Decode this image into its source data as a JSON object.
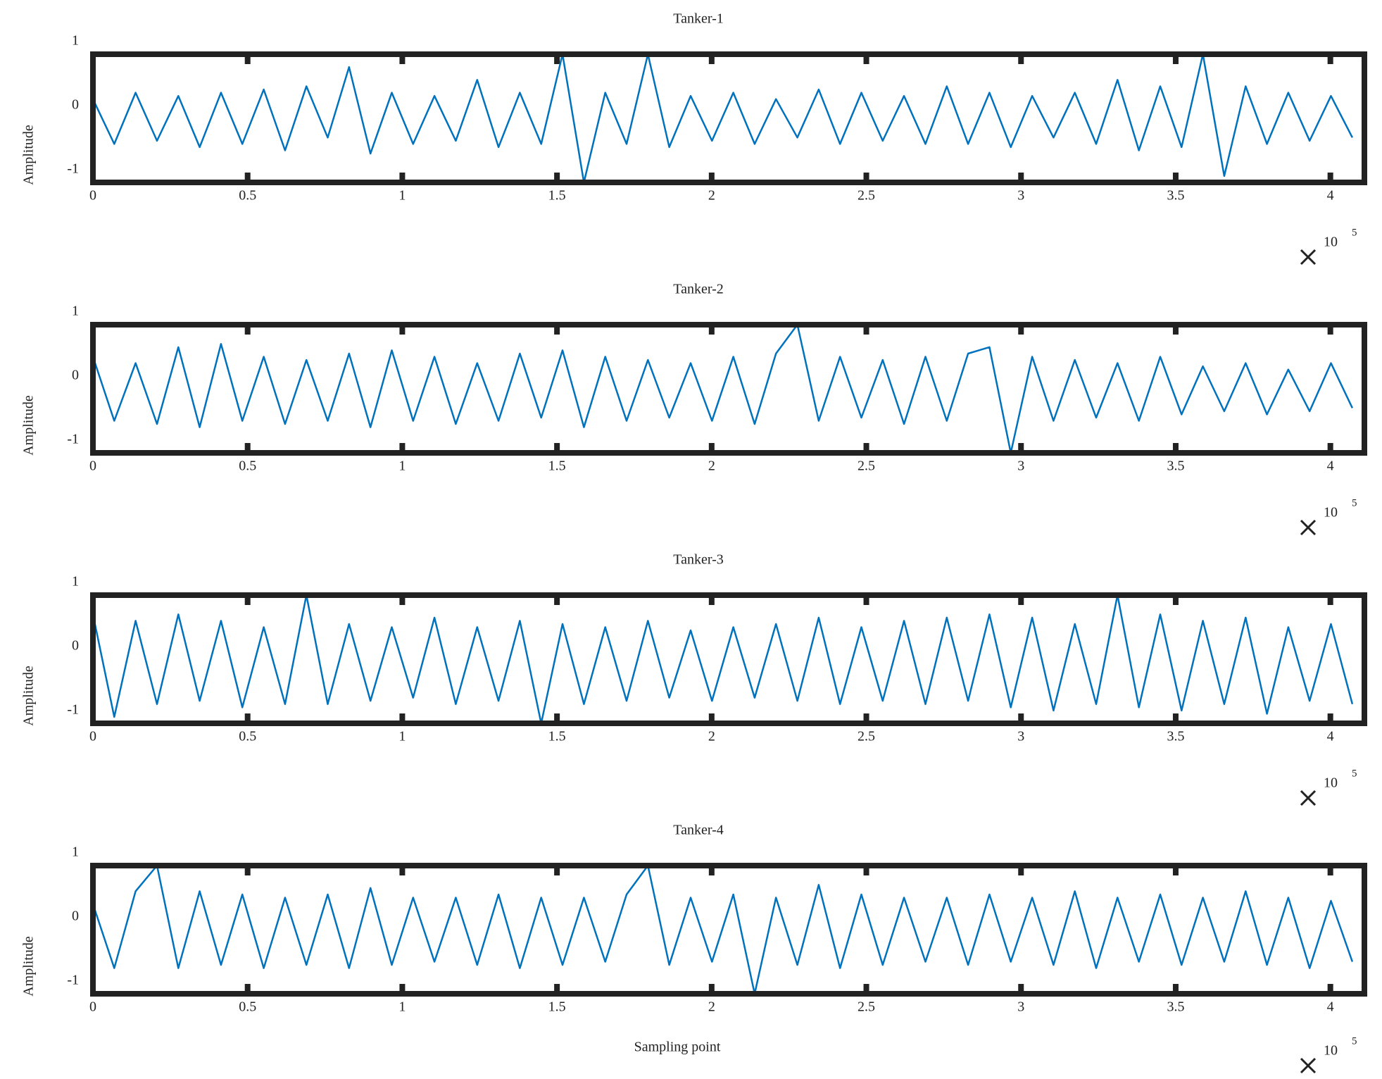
{
  "chart_data": [
    {
      "type": "line",
      "title": "Tanker-1",
      "ylabel": "Amplitude",
      "x": [
        0,
        6900,
        13800,
        20700,
        27600,
        34500,
        41400,
        48300,
        55200,
        62100,
        69000,
        75900,
        82800,
        89700,
        96600,
        103500,
        110400,
        117300,
        124200,
        131100,
        138000,
        144900,
        151800,
        158700,
        165600,
        172500,
        179400,
        186300,
        193200,
        200100,
        207000,
        213900,
        220800,
        227700,
        234600,
        241500,
        248400,
        255300,
        262200,
        269100,
        276000,
        282900,
        289800,
        296700,
        303600,
        310500,
        317400,
        324300,
        331200,
        338100,
        345000,
        351900,
        358800,
        365700,
        372600,
        379500,
        386400,
        393300,
        400200,
        407100
      ],
      "series": [
        {
          "color": "#0072bd",
          "values": [
            0.1,
            -0.6,
            0.2,
            -0.55,
            0.15,
            -0.65,
            0.2,
            -0.6,
            0.25,
            -0.7,
            0.3,
            -0.5,
            0.6,
            -0.75,
            0.2,
            -0.6,
            0.15,
            -0.55,
            0.4,
            -0.65,
            0.2,
            -0.6,
            0.8,
            -1.2,
            0.2,
            -0.6,
            0.8,
            -0.65,
            0.15,
            -0.55,
            0.2,
            -0.6,
            0.1,
            -0.5,
            0.25,
            -0.6,
            0.2,
            -0.55,
            0.15,
            -0.6,
            0.3,
            -0.6,
            0.2,
            -0.65,
            0.15,
            -0.5,
            0.2,
            -0.6,
            0.4,
            -0.7,
            0.3,
            -0.65,
            0.8,
            -1.1,
            0.3,
            -0.6,
            0.2,
            -0.55,
            0.15,
            -0.5
          ]
        }
      ],
      "xlim": [
        0,
        411000
      ],
      "ylim": [
        -1.2,
        0.8
      ],
      "xticks": [
        0,
        {
          "value": 50000,
          "label": "0.5"
        },
        {
          "value": 100000,
          "label": "1"
        },
        {
          "value": 150000,
          "label": "1.5"
        },
        {
          "value": 200000,
          "label": "2"
        },
        {
          "value": 250000,
          "label": "2.5"
        },
        {
          "value": 300000,
          "label": "3"
        },
        {
          "value": 350000,
          "label": "3.5"
        },
        {
          "value": 400000,
          "label": "4"
        }
      ],
      "yticks": [
        1,
        0,
        -1
      ],
      "x_exponent_base": "10",
      "x_exponent": "5"
    },
    {
      "type": "line",
      "title": "Tanker-2",
      "ylabel": "Amplitude",
      "x": [
        0,
        6900,
        13800,
        20700,
        27600,
        34500,
        41400,
        48300,
        55200,
        62100,
        69000,
        75900,
        82800,
        89700,
        96600,
        103500,
        110400,
        117300,
        124200,
        131100,
        138000,
        144900,
        151800,
        158700,
        165600,
        172500,
        179400,
        186300,
        193200,
        200100,
        207000,
        213900,
        220800,
        227700,
        234600,
        241500,
        248400,
        255300,
        262200,
        269100,
        276000,
        282900,
        289800,
        296700,
        303600,
        310500,
        317400,
        324300,
        331200,
        338100,
        345000,
        351900,
        358800,
        365700,
        372600,
        379500,
        386400,
        393300,
        400200,
        407100
      ],
      "series": [
        {
          "color": "#0072bd",
          "values": [
            0.3,
            -0.7,
            0.2,
            -0.75,
            0.45,
            -0.8,
            0.5,
            -0.7,
            0.3,
            -0.75,
            0.25,
            -0.7,
            0.35,
            -0.8,
            0.4,
            -0.7,
            0.3,
            -0.75,
            0.2,
            -0.7,
            0.35,
            -0.65,
            0.4,
            -0.8,
            0.3,
            -0.7,
            0.25,
            -0.65,
            0.2,
            -0.7,
            0.3,
            -0.75,
            0.35,
            0.8,
            -0.7,
            0.3,
            -0.65,
            0.25,
            -0.75,
            0.3,
            -0.7,
            0.35,
            0.45,
            -1.2,
            0.3,
            -0.7,
            0.25,
            -0.65,
            0.2,
            -0.7,
            0.3,
            -0.6,
            0.15,
            -0.55,
            0.2,
            -0.6,
            0.1,
            -0.55,
            0.2,
            -0.5
          ]
        }
      ],
      "xlim": [
        0,
        411000
      ],
      "ylim": [
        -1.2,
        0.8
      ],
      "xticks": [
        0,
        {
          "value": 50000,
          "label": "0.5"
        },
        {
          "value": 100000,
          "label": "1"
        },
        {
          "value": 150000,
          "label": "1.5"
        },
        {
          "value": 200000,
          "label": "2"
        },
        {
          "value": 250000,
          "label": "2.5"
        },
        {
          "value": 300000,
          "label": "3"
        },
        {
          "value": 350000,
          "label": "3.5"
        },
        {
          "value": 400000,
          "label": "4"
        }
      ],
      "yticks": [
        1,
        0,
        -1
      ],
      "x_exponent_base": "10",
      "x_exponent": "5"
    },
    {
      "type": "line",
      "title": "Tanker-3",
      "ylabel": "Amplitude",
      "x": [
        0,
        6900,
        13800,
        20700,
        27600,
        34500,
        41400,
        48300,
        55200,
        62100,
        69000,
        75900,
        82800,
        89700,
        96600,
        103500,
        110400,
        117300,
        124200,
        131100,
        138000,
        144900,
        151800,
        158700,
        165600,
        172500,
        179400,
        186300,
        193200,
        200100,
        207000,
        213900,
        220800,
        227700,
        234600,
        241500,
        248400,
        255300,
        262200,
        269100,
        276000,
        282900,
        289800,
        296700,
        303600,
        310500,
        317400,
        324300,
        331200,
        338100,
        345000,
        351900,
        358800,
        365700,
        372600,
        379500,
        386400,
        393300,
        400200,
        407100
      ],
      "series": [
        {
          "color": "#0072bd",
          "values": [
            0.5,
            -1.1,
            0.4,
            -0.9,
            0.5,
            -0.85,
            0.4,
            -0.95,
            0.3,
            -0.9,
            0.8,
            -0.9,
            0.35,
            -0.85,
            0.3,
            -0.8,
            0.45,
            -0.9,
            0.3,
            -0.85,
            0.4,
            -1.2,
            0.35,
            -0.9,
            0.3,
            -0.85,
            0.4,
            -0.8,
            0.25,
            -0.85,
            0.3,
            -0.8,
            0.35,
            -0.85,
            0.45,
            -0.9,
            0.3,
            -0.85,
            0.4,
            -0.9,
            0.45,
            -0.85,
            0.5,
            -0.95,
            0.45,
            -1.0,
            0.35,
            -0.9,
            0.8,
            -0.95,
            0.5,
            -1.0,
            0.4,
            -0.9,
            0.45,
            -1.05,
            0.3,
            -0.85,
            0.35,
            -0.9
          ]
        }
      ],
      "xlim": [
        0,
        411000
      ],
      "ylim": [
        -1.2,
        0.8
      ],
      "xticks": [
        0,
        {
          "value": 50000,
          "label": "0.5"
        },
        {
          "value": 100000,
          "label": "1"
        },
        {
          "value": 150000,
          "label": "1.5"
        },
        {
          "value": 200000,
          "label": "2"
        },
        {
          "value": 250000,
          "label": "2.5"
        },
        {
          "value": 300000,
          "label": "3"
        },
        {
          "value": 350000,
          "label": "3.5"
        },
        {
          "value": 400000,
          "label": "4"
        }
      ],
      "yticks": [
        1,
        0,
        -1
      ],
      "x_exponent_base": "10",
      "x_exponent": "5"
    },
    {
      "type": "line",
      "title": "Tanker-4",
      "ylabel": "Amplitude",
      "xlabel": "Sampling point",
      "x": [
        0,
        6900,
        13800,
        20700,
        27600,
        34500,
        41400,
        48300,
        55200,
        62100,
        69000,
        75900,
        82800,
        89700,
        96600,
        103500,
        110400,
        117300,
        124200,
        131100,
        138000,
        144900,
        151800,
        158700,
        165600,
        172500,
        179400,
        186300,
        193200,
        200100,
        207000,
        213900,
        220800,
        227700,
        234600,
        241500,
        248400,
        255300,
        262200,
        269100,
        276000,
        282900,
        289800,
        296700,
        303600,
        310500,
        317400,
        324300,
        331200,
        338100,
        345000,
        351900,
        358800,
        365700,
        372600,
        379500,
        386400,
        393300,
        400200,
        407100
      ],
      "series": [
        {
          "color": "#0072bd",
          "values": [
            0.2,
            -0.8,
            0.4,
            0.8,
            -0.8,
            0.4,
            -0.75,
            0.35,
            -0.8,
            0.3,
            -0.75,
            0.35,
            -0.8,
            0.45,
            -0.75,
            0.3,
            -0.7,
            0.3,
            -0.75,
            0.35,
            -0.8,
            0.3,
            -0.75,
            0.3,
            -0.7,
            0.35,
            0.8,
            -0.75,
            0.3,
            -0.7,
            0.35,
            -1.2,
            0.3,
            -0.75,
            0.5,
            -0.8,
            0.35,
            -0.75,
            0.3,
            -0.7,
            0.3,
            -0.75,
            0.35,
            -0.7,
            0.3,
            -0.75,
            0.4,
            -0.8,
            0.3,
            -0.7,
            0.35,
            -0.75,
            0.3,
            -0.7,
            0.4,
            -0.75,
            0.3,
            -0.8,
            0.25,
            -0.7
          ]
        }
      ],
      "xlim": [
        0,
        411000
      ],
      "ylim": [
        -1.2,
        0.8
      ],
      "xticks": [
        0,
        {
          "value": 50000,
          "label": "0.5"
        },
        {
          "value": 100000,
          "label": "1"
        },
        {
          "value": 150000,
          "label": "1.5"
        },
        {
          "value": 200000,
          "label": "2"
        },
        {
          "value": 250000,
          "label": "2.5"
        },
        {
          "value": 300000,
          "label": "3"
        },
        {
          "value": 350000,
          "label": "3.5"
        },
        {
          "value": 400000,
          "label": "4"
        }
      ],
      "yticks": [
        1,
        0,
        -1
      ],
      "x_exponent_base": "10",
      "x_exponent": "5"
    }
  ]
}
